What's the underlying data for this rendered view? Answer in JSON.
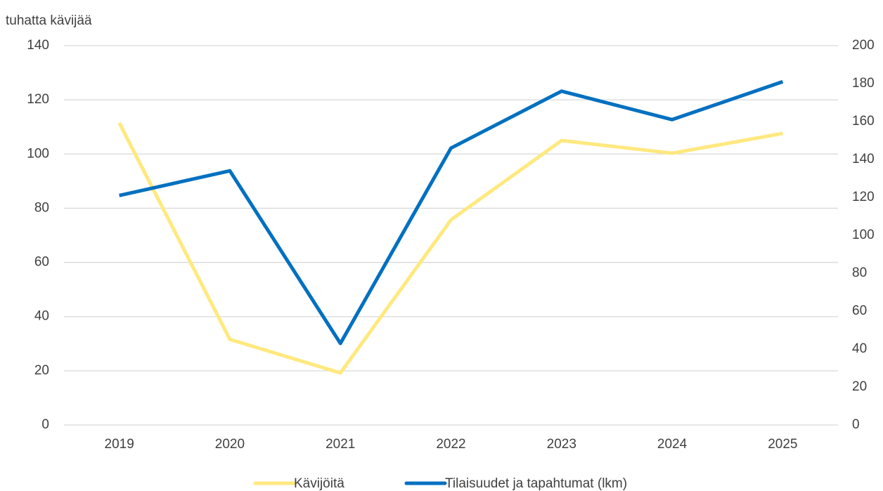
{
  "chart_data": {
    "type": "line",
    "y_label": "tuhatta kävijää",
    "categories": [
      "2019",
      "2020",
      "2021",
      "2022",
      "2023",
      "2024",
      "2025"
    ],
    "series": [
      {
        "name": "Kävijöitä",
        "color": "#ffe97f",
        "values": [
          111.5,
          31.6,
          19.2,
          75.7,
          105,
          100.3,
          107.6
        ]
      },
      {
        "name": "Tilaisuudet ja tapahtumat (lkm)",
        "color": "#0070c0",
        "axis": "y2",
        "values": [
          121,
          134,
          43,
          146,
          176,
          161,
          181
        ]
      }
    ],
    "ylim": [
      0,
      140
    ],
    "yticks": [
      0,
      20,
      40,
      60,
      80,
      100,
      120,
      140
    ],
    "y2lim": [
      0,
      200
    ],
    "y2ticks": [
      0,
      20,
      40,
      60,
      80,
      100,
      120,
      140,
      160,
      180,
      200
    ],
    "grid": true,
    "legend": "bottom"
  }
}
